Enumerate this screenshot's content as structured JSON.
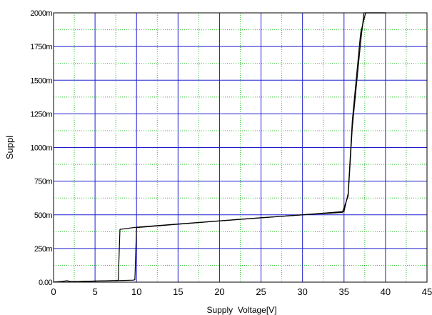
{
  "chart_data": {
    "type": "line",
    "xlabel": "Supply  Voltage[V]",
    "ylabel": "Suppl",
    "xlim": [
      0,
      45
    ],
    "ylim": [
      0,
      2000
    ],
    "x_ticks": [
      0,
      5,
      10,
      15,
      20,
      25,
      30,
      35,
      40,
      45
    ],
    "x_tick_labels": [
      "0",
      "5",
      "10",
      "15",
      "20",
      "25",
      "30",
      "35",
      "40",
      "45"
    ],
    "y_ticks": [
      0,
      250,
      500,
      750,
      1000,
      1250,
      1500,
      1750,
      2000
    ],
    "y_tick_labels": [
      "0.00",
      "250m",
      "500m",
      "750m",
      "1000m",
      "1250m",
      "1500m",
      "1750m",
      "2000m"
    ],
    "grid": true,
    "major_grid_color": "#1e1ecf",
    "minor_grid_color": "#2fbf2f",
    "line_color": "#000000",
    "series": [
      {
        "x": [
          0,
          1.0,
          1.6,
          2.0,
          3,
          5,
          7.5,
          7.8,
          8.0,
          10,
          15,
          20,
          25,
          30,
          34.8,
          35.5,
          36.0,
          37.0,
          37.4,
          40
        ],
        "values": [
          0,
          5,
          10,
          5,
          5,
          8,
          12,
          15,
          392,
          408,
          432,
          455,
          478,
          500,
          518,
          640,
          1150,
          1780,
          2000,
          2000
        ]
      },
      {
        "x": [
          0,
          1.0,
          1.6,
          2.0,
          3,
          5,
          8,
          9.6,
          9.8,
          10,
          15,
          20,
          25,
          30,
          35.0,
          35.5,
          36.0,
          37.0,
          37.6,
          40
        ],
        "values": [
          0,
          5,
          10,
          5,
          5,
          8,
          12,
          15,
          18,
          405,
          430,
          455,
          478,
          500,
          525,
          660,
          1200,
          1850,
          2000,
          2000
        ]
      }
    ]
  }
}
